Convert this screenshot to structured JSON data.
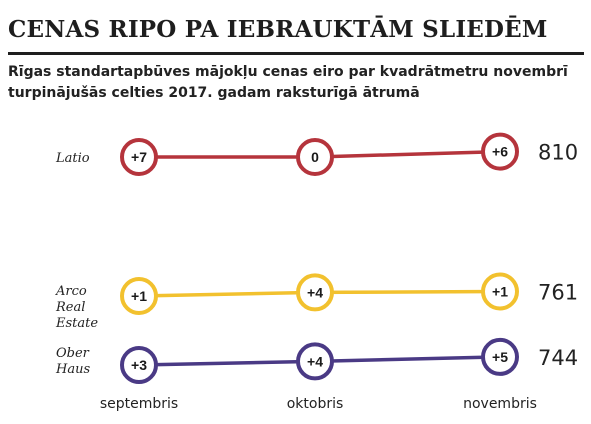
{
  "headline": "CENAS RIPO PA IEBRAUKTĀM SLIEDĒM",
  "subtitle_lines": [
    "Rīgas standartapbūves mājokļu cenas eiro par kvadrātmetru novembrī",
    "turpinājušās celties 2017. gadam raksturīgā ātrumā"
  ],
  "chart_data": {
    "type": "line",
    "title": "Rīgas standartapbūves mājokļu cenas eiro par kvadrātmetru novembrī turpinājušās celties 2017. gadam raksturīgā ātrumā",
    "categories": [
      "septembris",
      "oktobris",
      "novembris"
    ],
    "series": [
      {
        "name": "Latio",
        "label_lines": [
          "Latio"
        ],
        "changes": [
          "+7",
          "0",
          "+6"
        ],
        "final_value": 810,
        "color": "#b5343c",
        "y_ref": [
          804,
          804,
          810
        ]
      },
      {
        "name": "Arco Real Estate",
        "label_lines": [
          "Arco",
          "Real",
          "Estate"
        ],
        "changes": [
          "+1",
          "+4",
          "+1"
        ],
        "final_value": 761,
        "color": "#f2c12e",
        "y_ref": [
          756,
          760,
          761
        ]
      },
      {
        "name": "Ober Haus",
        "label_lines": [
          "Ober",
          "Haus"
        ],
        "changes": [
          "+3",
          "+4",
          "+5"
        ],
        "final_value": 744,
        "color": "#4a3a85",
        "y_ref": [
          735,
          739,
          744
        ]
      }
    ],
    "xlabel": "",
    "ylabel": "",
    "grid": false,
    "legend": "left"
  }
}
